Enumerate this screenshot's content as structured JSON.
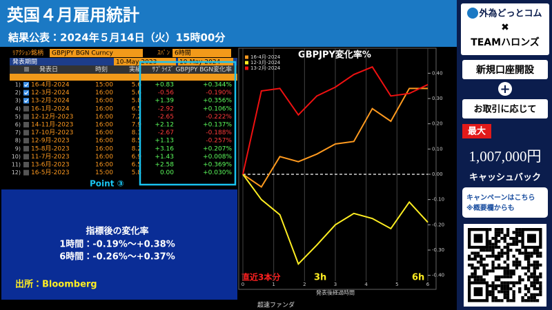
{
  "header": {
    "title": "英国４月雇用統計",
    "subtitle": "結果公表：2024年５月14日（火）15時00分"
  },
  "table": {
    "field_label": "ﾘｱｸｼｮﾝ銘柄",
    "field_value": "GBPJPY BGN Curncy",
    "span_label": "ｽﾊﾟﾝ",
    "span_value": "6時間",
    "period_label": "発表期間",
    "period_start": "10-May-2023",
    "period_end": "10-May-2024",
    "columns": [
      "発表日",
      "時刻",
      "実績",
      "ｻﾌﾟﾗｲｽﾞ",
      "GBPJPY BGN変化率"
    ],
    "checked": [
      true,
      true,
      true,
      false,
      false,
      false,
      false,
      false,
      false,
      false,
      false,
      false
    ],
    "rows": [
      [
        "1)",
        "16-4月-2024",
        "15:00",
        "5.6",
        "+0.83",
        "+0.344%"
      ],
      [
        "2)",
        "12-3月-2024",
        "16:00",
        "5.6",
        "-0.56",
        "-0.190%"
      ],
      [
        "3)",
        "13-2月-2024",
        "16:00",
        "5.8",
        "+1.39",
        "+0.356%"
      ],
      [
        "4)",
        "16-1月-2024",
        "16:00",
        "6.5",
        "-2.92",
        "+0.106%"
      ],
      [
        "5)",
        "12-12月-2023",
        "16:00",
        "7.2",
        "-2.65",
        "-0.222%"
      ],
      [
        "6)",
        "14-11月-2023",
        "16:00",
        "7.9",
        "+2.12",
        "+0.137%"
      ],
      [
        "7)",
        "17-10月-2023",
        "16:00",
        "8.1",
        "-2.67",
        "-0.188%"
      ],
      [
        "8)",
        "12-9月-2023",
        "16:00",
        "8.5",
        "+1.13",
        "-0.257%"
      ],
      [
        "9)",
        "15-8月-2023",
        "16:00",
        "8.2",
        "+3.16",
        "+0.207%"
      ],
      [
        "10)",
        "11-7月-2023",
        "16:00",
        "6.9",
        "+1.43",
        "+0.008%"
      ],
      [
        "11)",
        "13-6月-2023",
        "16:00",
        "6.5",
        "+2.58",
        "+0.369%"
      ],
      [
        "12)",
        "16-5月-2023",
        "15:00",
        "5.8",
        "0.00",
        "+0.030%"
      ]
    ],
    "point": "Point ③"
  },
  "summary": {
    "title": "指標後の変化率",
    "line1": "1時間：-0.19%～+0.38%",
    "line2": "6時間：-0.26%～+0.37%",
    "source": "出所：Bloomberg"
  },
  "chart_data": {
    "type": "line",
    "title": "GBPJPY変化率%",
    "x_label": "発表後経過時間",
    "footer": "超速ファンダ",
    "annotations": [
      "直近3本分",
      "3h",
      "6h"
    ],
    "x": [
      0,
      0.6,
      1.2,
      1.8,
      2.4,
      3.0,
      3.6,
      4.2,
      4.8,
      5.4,
      6.0
    ],
    "xlim": [
      0,
      6
    ],
    "xticks": [
      0,
      1,
      2,
      3,
      4,
      5,
      6
    ],
    "ylim": [
      -0.45,
      0.45
    ],
    "yticks": [
      {
        "value": -0.4,
        "label": "-0.40"
      },
      {
        "value": -0.3,
        "label": "-0.30"
      },
      {
        "value": -0.2,
        "label": "-0.20"
      },
      {
        "value": -0.1,
        "label": "-0.10"
      },
      {
        "value": 0,
        "label": "0.00"
      },
      {
        "value": 0.1,
        "label": "0.10"
      },
      {
        "value": 0.2,
        "label": "0.20"
      },
      {
        "value": 0.3,
        "label": "0.30"
      },
      {
        "value": 0.4,
        "label": "0.40"
      }
    ],
    "grid": true,
    "legend": "top-left",
    "series": [
      {
        "name": "16-4月-2024",
        "color": "#ff9a1f",
        "values": [
          0,
          -0.05,
          0.07,
          0.05,
          0.08,
          0.12,
          0.13,
          0.26,
          0.21,
          0.34,
          0.34
        ]
      },
      {
        "name": "12-3月-2024",
        "color": "#ffee22",
        "values": [
          0,
          -0.1,
          -0.16,
          -0.355,
          -0.28,
          -0.2,
          -0.155,
          -0.175,
          -0.215,
          -0.11,
          -0.19
        ]
      },
      {
        "name": "13-2月-2024",
        "color": "#ee1111",
        "values": [
          0,
          0.33,
          0.34,
          0.235,
          0.31,
          0.345,
          0.395,
          0.425,
          0.31,
          0.32,
          0.355
        ]
      }
    ]
  },
  "ad": {
    "brand": "外為どっとコム",
    "cross": "✖",
    "team": "TEAMハロンズ",
    "open": "新規口座開設",
    "plus": "+",
    "trade": "お取引に応じて",
    "max": "最大",
    "amount": "1,007,000円",
    "cashback": "キャッシュバック",
    "campaign": "キャンペーンはこちら",
    "note": "※概要欄からも"
  }
}
